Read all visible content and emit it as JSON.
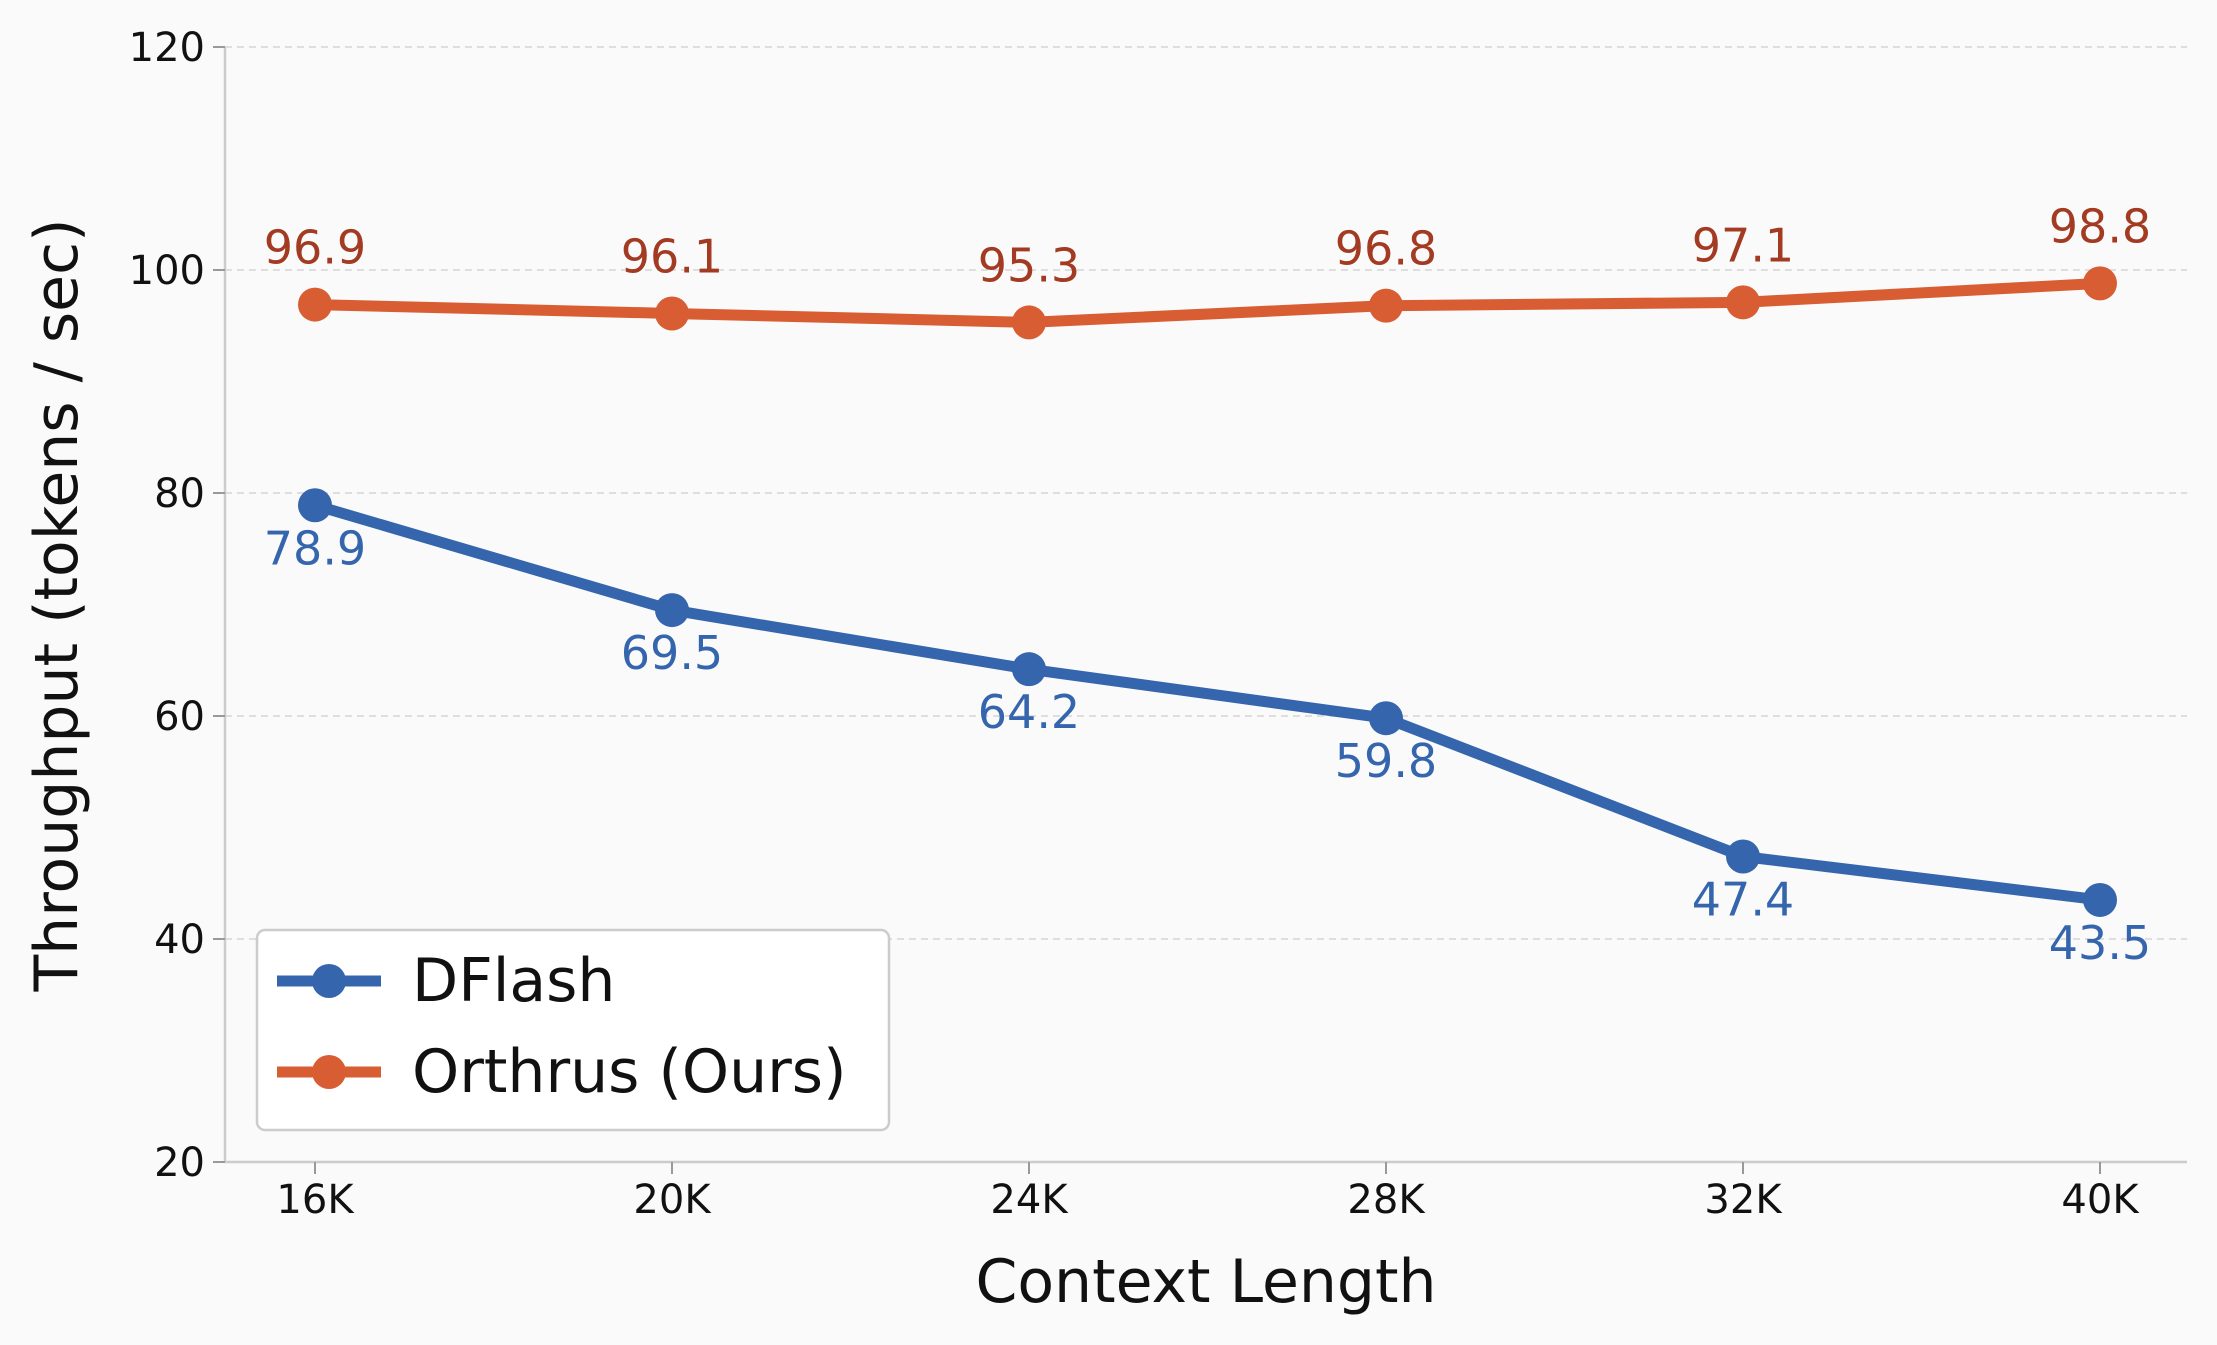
{
  "chart_data": {
    "type": "line",
    "title": "",
    "xlabel": "Context Length",
    "ylabel": "Throughput (tokens / sec)",
    "categories": [
      "16K",
      "20K",
      "24K",
      "28K",
      "32K",
      "40K"
    ],
    "ylim": [
      20,
      120
    ],
    "yticks": [
      20,
      40,
      60,
      80,
      100,
      120
    ],
    "grid": "horizontal dashed",
    "legend_position": "lower-left",
    "series": [
      {
        "name": "DFlash",
        "values": [
          78.9,
          69.5,
          64.2,
          59.8,
          47.4,
          43.5
        ],
        "labels": [
          "78.9",
          "69.5",
          "64.2",
          "59.8",
          "47.4",
          "43.5"
        ],
        "color": "#3565ad",
        "label_color": "#3565ad",
        "label_placement": "below"
      },
      {
        "name": "Orthrus (Ours)",
        "values": [
          96.9,
          96.1,
          95.3,
          96.8,
          97.1,
          98.8
        ],
        "labels": [
          "96.9",
          "96.1",
          "95.3",
          "96.8",
          "97.1",
          "98.8"
        ],
        "color": "#d95d33",
        "label_color": "#a33a22",
        "label_placement": "above"
      }
    ]
  }
}
